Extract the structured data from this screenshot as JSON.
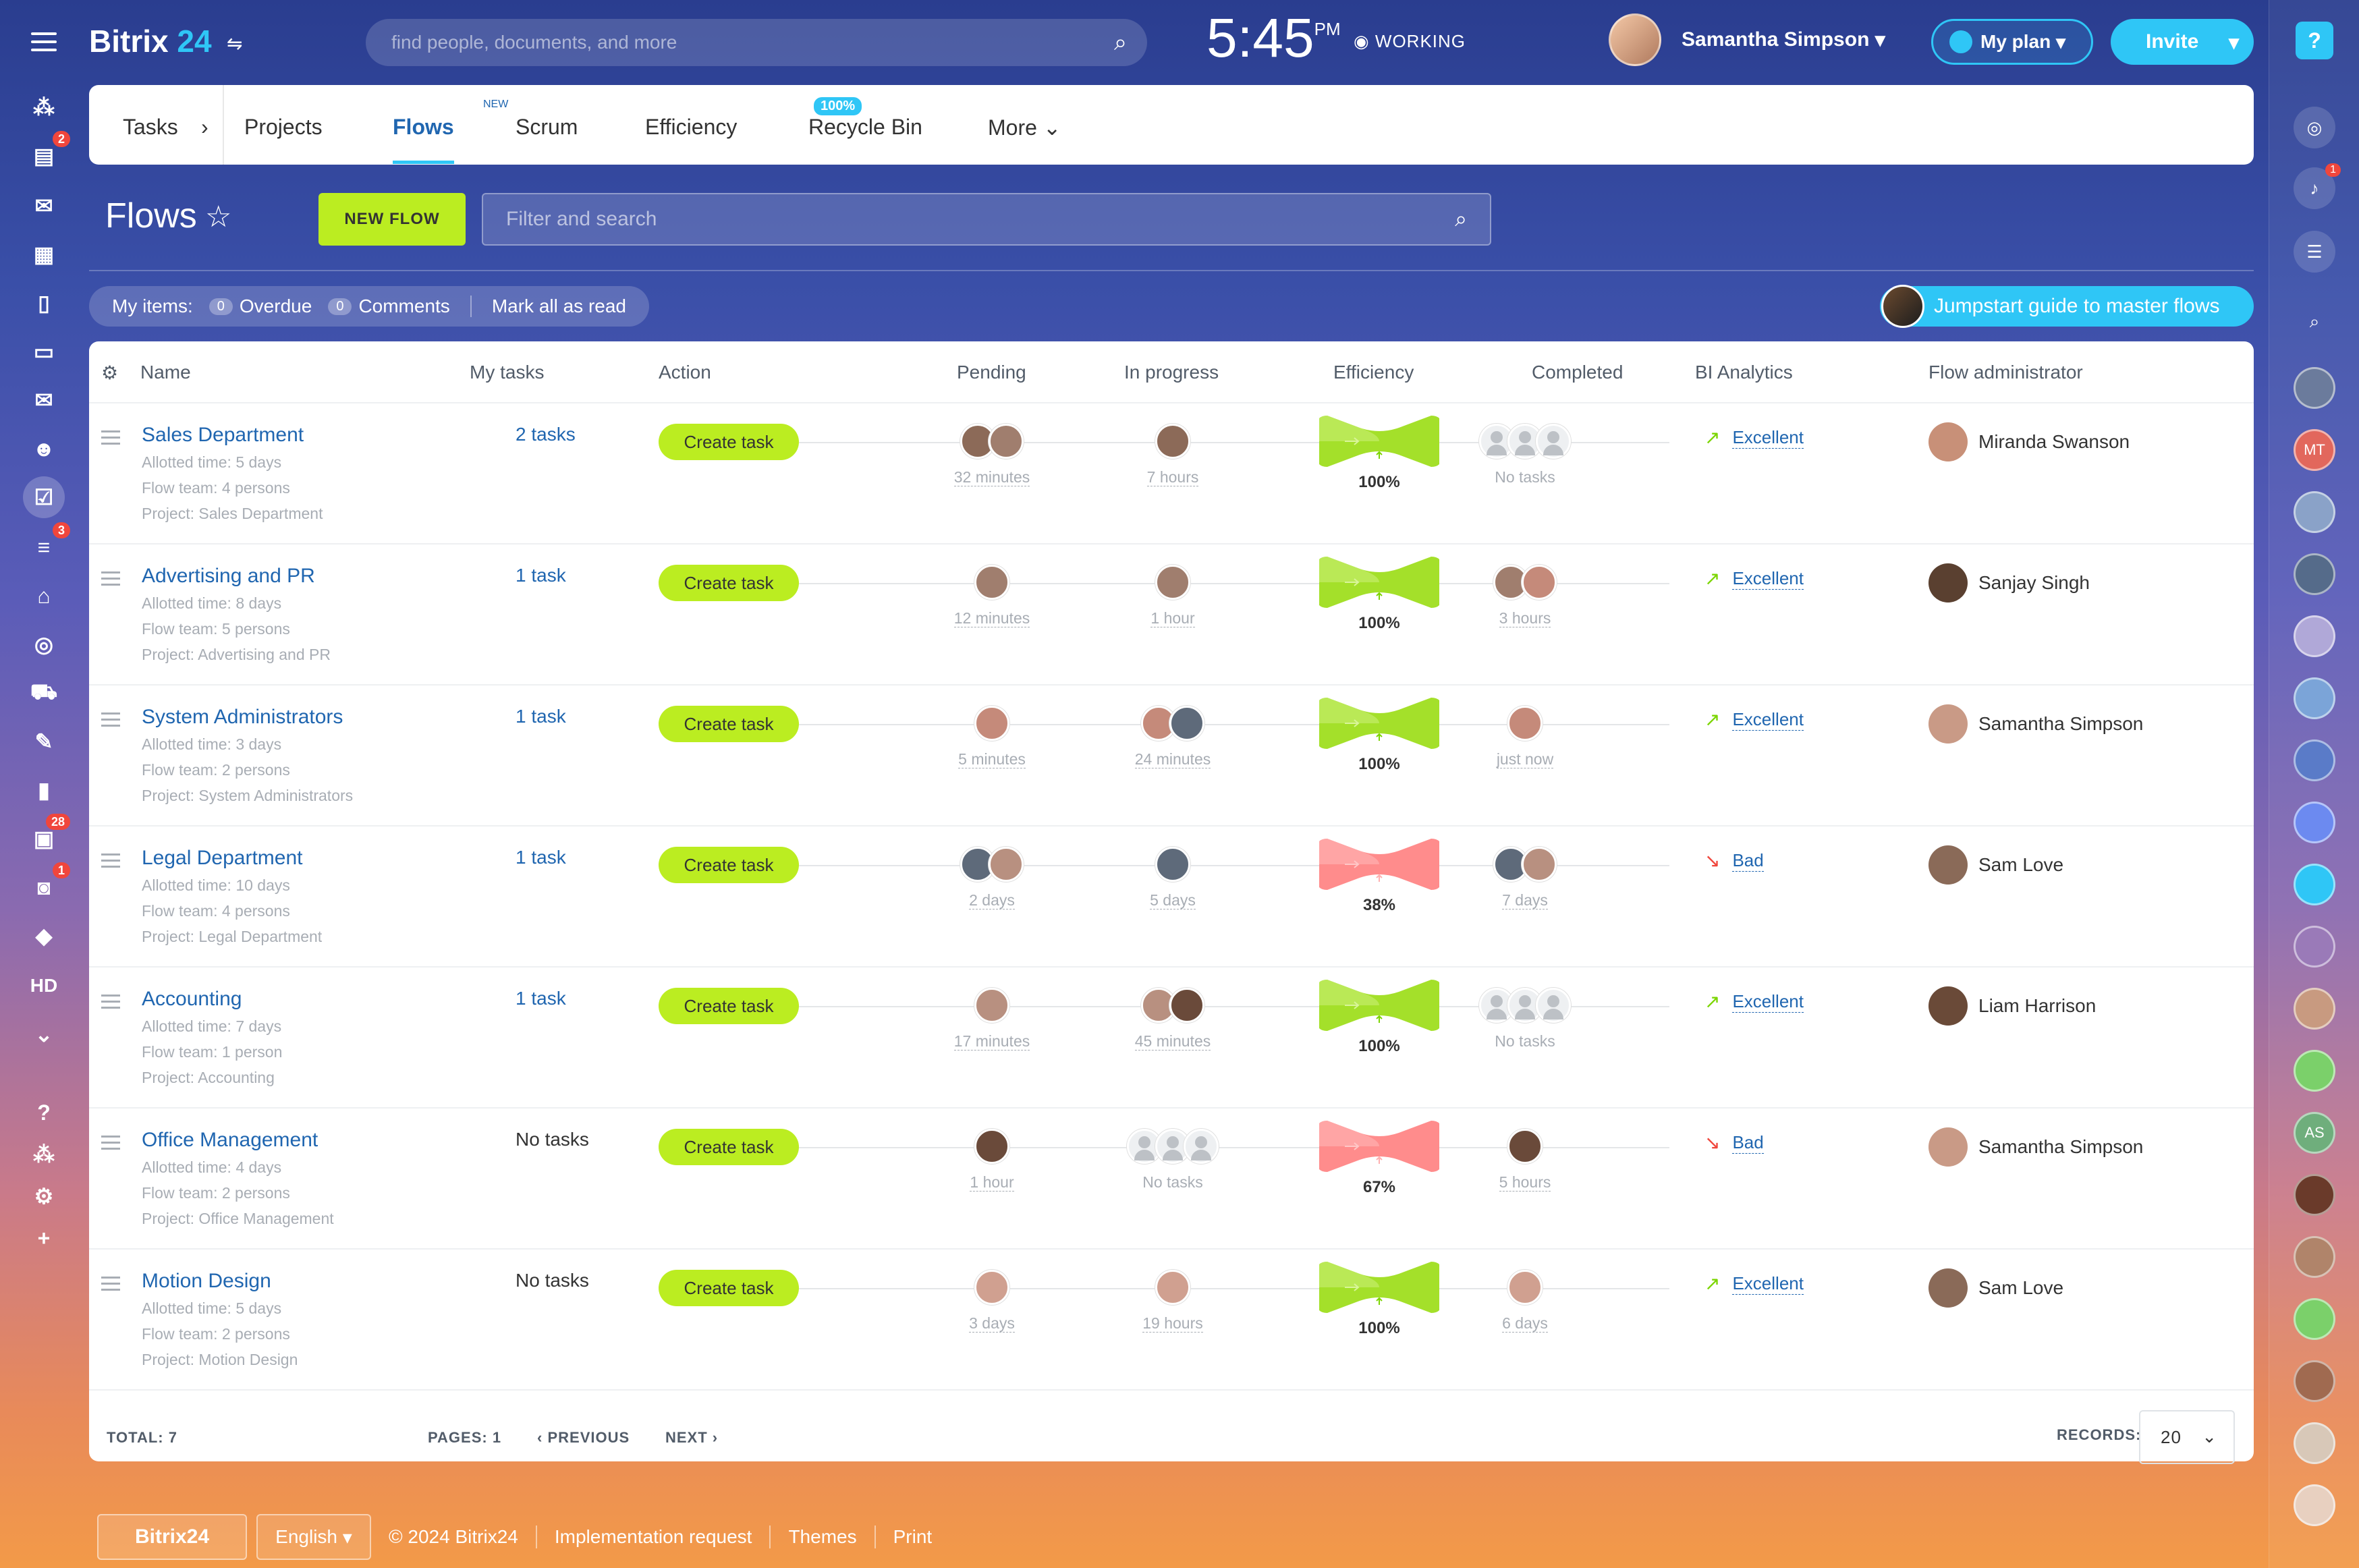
{
  "app": {
    "logo_name": "Bitrix",
    "logo_num": "24",
    "search_placeholder": "find people, documents, and more",
    "time": "5:45",
    "ampm": "PM",
    "work_status": "WORKING",
    "user_name": "Samantha Simpson",
    "plan_label": "My plan",
    "invite_label": "Invite"
  },
  "left_sidebar": {
    "badges": {
      "calendar": "2",
      "filter": "3",
      "contacts": "28",
      "robot": "1"
    },
    "hd_label": "HD"
  },
  "right_sidebar": {
    "help": "?",
    "notif_badge": "1",
    "initials_mt": "MT",
    "initials_as": "AS"
  },
  "tabs": {
    "items": [
      "Tasks",
      "Projects",
      "Flows",
      "Scrum",
      "Efficiency",
      "Recycle Bin",
      "More"
    ],
    "new_badge": "NEW",
    "efficiency_badge": "100%"
  },
  "page": {
    "title": "Flows",
    "new_flow_button": "NEW FLOW",
    "filter_placeholder": "Filter and search"
  },
  "counters": {
    "my_items": "My items:",
    "overdue_count": "0",
    "overdue_label": "Overdue",
    "comments_count": "0",
    "comments_label": "Comments",
    "mark_all": "Mark all as read",
    "jumpstart": "Jumpstart guide to master flows"
  },
  "table": {
    "columns": [
      "Name",
      "My tasks",
      "Action",
      "Pending",
      "In progress",
      "Efficiency",
      "Completed",
      "BI Analytics",
      "Flow administrator"
    ],
    "action_label": "Create task",
    "rows": [
      {
        "name": "Sales Department",
        "allotted": "Allotted time:  5 days",
        "team": "Flow team:  4 persons",
        "project": "Project:  Sales Department",
        "my_tasks": "2 tasks",
        "pending": "32 minutes",
        "in_progress": "7 hours",
        "efficiency": "100%",
        "completed": "No tasks",
        "bi": "Excellent",
        "admin": "Miranda Swanson"
      },
      {
        "name": "Advertising and PR",
        "allotted": "Allotted time:  8 days",
        "team": "Flow team:  5 persons",
        "project": "Project:  Advertising and PR",
        "my_tasks": "1 task",
        "pending": "12 minutes",
        "in_progress": "1 hour",
        "efficiency": "100%",
        "completed": "3 hours",
        "bi": "Excellent",
        "admin": "Sanjay Singh"
      },
      {
        "name": "System Administrators",
        "allotted": "Allotted time:  3 days",
        "team": "Flow team:  2 persons",
        "project": "Project:  System Administrators",
        "my_tasks": "1 task",
        "pending": "5 minutes",
        "in_progress": "24 minutes",
        "efficiency": "100%",
        "completed": "just now",
        "bi": "Excellent",
        "admin": "Samantha Simpson"
      },
      {
        "name": "Legal Department",
        "allotted": "Allotted time:  10 days",
        "team": "Flow team:  4 persons",
        "project": "Project:  Legal Department",
        "my_tasks": "1 task",
        "pending": "2 days",
        "in_progress": "5 days",
        "efficiency": "38%",
        "completed": "7 days",
        "bi": "Bad",
        "admin": "Sam Love"
      },
      {
        "name": "Accounting",
        "allotted": "Allotted time:  7 days",
        "team": "Flow team:  1 person",
        "project": "Project:  Accounting",
        "my_tasks": "1 task",
        "pending": "17 minutes",
        "in_progress": "45 minutes",
        "efficiency": "100%",
        "completed": "No tasks",
        "bi": "Excellent",
        "admin": "Liam Harrison"
      },
      {
        "name": "Office Management",
        "allotted": "Allotted time:  4 days",
        "team": "Flow team:  2 persons",
        "project": "Project:  Office Management",
        "my_tasks": "No tasks",
        "pending": "1 hour",
        "in_progress": "No tasks",
        "efficiency": "67%",
        "completed": "5 hours",
        "bi": "Bad",
        "admin": "Samantha Simpson"
      },
      {
        "name": "Motion Design",
        "allotted": "Allotted time:  5 days",
        "team": "Flow team:  2 persons",
        "project": "Project:  Motion Design",
        "my_tasks": "No tasks",
        "pending": "3 days",
        "in_progress": "19 hours",
        "efficiency": "100%",
        "completed": "6 days",
        "bi": "Excellent",
        "admin": "Sam Love"
      }
    ]
  },
  "pagination": {
    "total": "TOTAL: 7",
    "pages": "PAGES:  1",
    "previous": "PREVIOUS",
    "next": "NEXT",
    "records_label": "RECORDS:",
    "records_value": "20"
  },
  "footer": {
    "brand": "Bitrix24",
    "language": "English",
    "copyright": "© 2024 Bitrix24",
    "implementation": "Implementation request",
    "themes": "Themes",
    "print": "Print"
  }
}
